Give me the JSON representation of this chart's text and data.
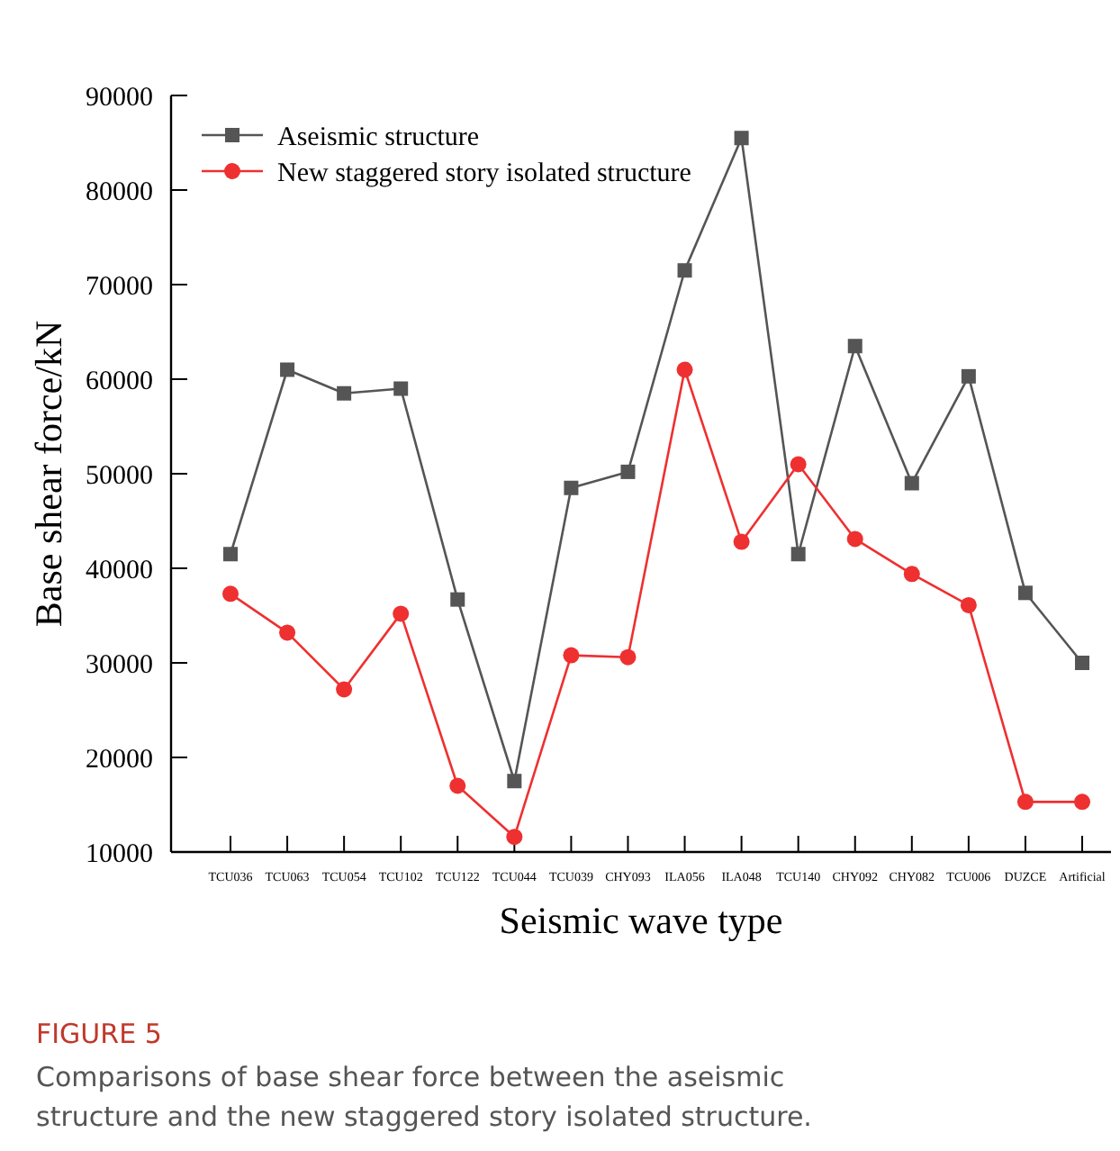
{
  "chart_data": {
    "type": "line",
    "xlabel": "Seismic wave type",
    "ylabel": "Base shear force/kN",
    "categories": [
      "TCU036",
      "TCU063",
      "TCU054",
      "TCU102",
      "TCU122",
      "TCU044",
      "TCU039",
      "CHY093",
      "ILA056",
      "ILA048",
      "TCU140",
      "CHY092",
      "CHY082",
      "TCU006",
      "DUZCE",
      "Artificial"
    ],
    "series": [
      {
        "name": "Aseismic structure",
        "color": "#555555",
        "marker": "square",
        "values": [
          41500,
          61000,
          58500,
          59000,
          36700,
          17500,
          48500,
          50200,
          71500,
          85500,
          41500,
          63500,
          49000,
          60300,
          37400,
          30000
        ]
      },
      {
        "name": "New staggered story isolated structure",
        "color": "#ee3030",
        "marker": "circle",
        "values": [
          37300,
          33200,
          27200,
          35200,
          17000,
          11600,
          30800,
          30600,
          61000,
          42800,
          51000,
          43100,
          39400,
          36100,
          15300,
          15300
        ]
      }
    ],
    "ylim": [
      10000,
      90000
    ],
    "yticks": [
      10000,
      20000,
      30000,
      40000,
      50000,
      60000,
      70000,
      80000,
      90000
    ],
    "grid": false,
    "legend": "top left",
    "annotations": [
      "FIGURE 5",
      "Comparisons of base shear force between the aseismic structure and the new staggered story isolated structure."
    ]
  }
}
